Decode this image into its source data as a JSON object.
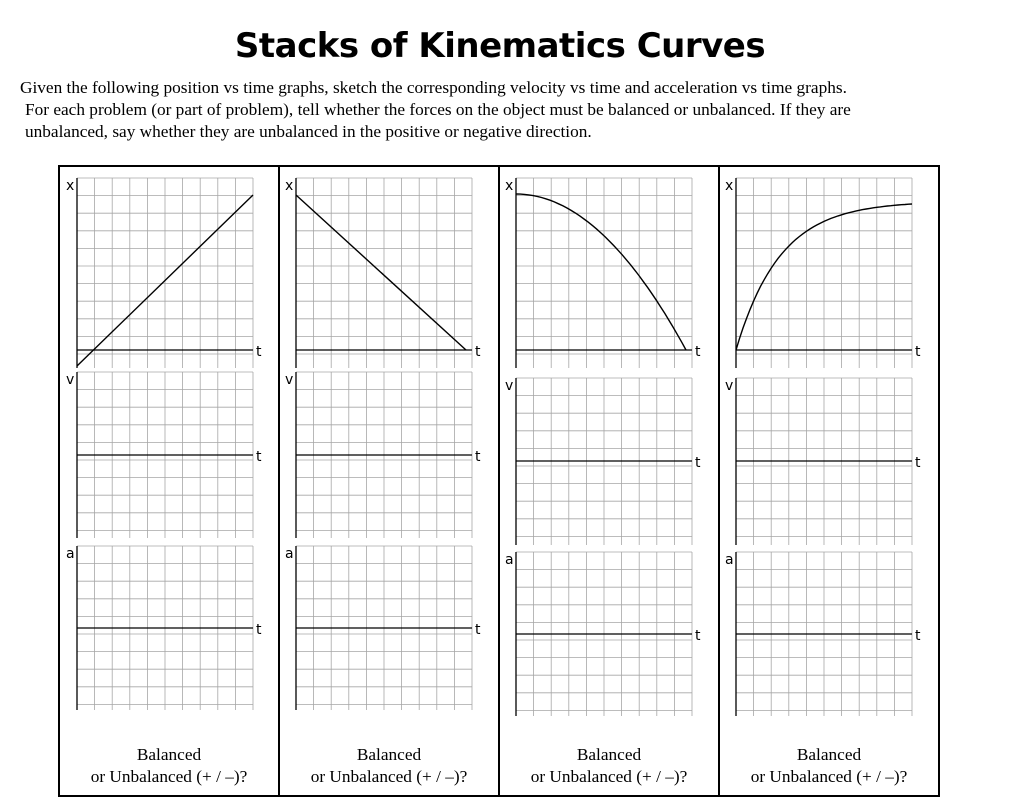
{
  "title": "Stacks of Kinematics Curves",
  "instructions": [
    "Given the following position vs time graphs, sketch the corresponding velocity vs time and acceleration vs time graphs.",
    "For each problem (or part of problem), tell whether the forces on the object must be balanced or unbalanced.  If they are",
    "unbalanced, say whether they are unbalanced in the positive or negative direction."
  ],
  "axis_labels": {
    "position": "x",
    "velocity": "v",
    "acceleration": "a",
    "time": "t"
  },
  "answer_prompt": {
    "line1": "Balanced",
    "line2": "or Unbalanced (+ / –)?"
  },
  "problems": [
    {
      "position_curve": "linear-increasing"
    },
    {
      "position_curve": "linear-decreasing"
    },
    {
      "position_curve": "concave-down-decreasing"
    },
    {
      "position_curve": "increasing-leveling-off"
    }
  ]
}
